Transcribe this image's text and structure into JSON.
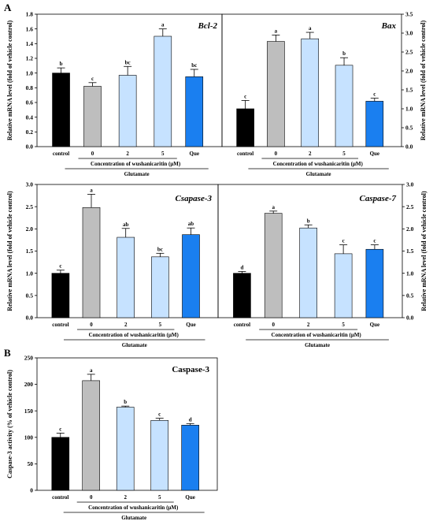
{
  "panel_letters": [
    "A",
    "B"
  ],
  "group_labels": {
    "concentration": "Concentration of wushanicaritin (μM)",
    "treatment": "Glutamate"
  },
  "bar_colors": [
    "#000000",
    "#bebebe",
    "#c6e2ff",
    "#c6e2ff",
    "#1a7ff0"
  ],
  "chart_data": [
    {
      "type": "bar",
      "title": "Bcl-2",
      "ylabel": "Relative mRNA level (fold of vehicle control)",
      "categories": [
        "control",
        "0",
        "2",
        "5",
        "Que"
      ],
      "values": [
        1.0,
        0.82,
        0.97,
        1.5,
        0.95
      ],
      "errors": [
        0.07,
        0.05,
        0.12,
        0.1,
        0.1
      ],
      "letters": [
        "b",
        "c",
        "bc",
        "a",
        "bc"
      ],
      "ylim": [
        0,
        1.8
      ],
      "yticks": [
        "0.0",
        "0.2",
        "0.4",
        "0.6",
        "0.8",
        "1.0",
        "1.2",
        "1.4",
        "1.6",
        "1.8"
      ],
      "yaxis_side": "left",
      "grid": false
    },
    {
      "type": "bar",
      "title": "Bax",
      "ylabel": "Relative mRNA level (fold of vehicle control)",
      "categories": [
        "control",
        "0",
        "2",
        "5",
        "Que"
      ],
      "values": [
        1.0,
        2.78,
        2.85,
        2.15,
        1.2
      ],
      "errors": [
        0.22,
        0.17,
        0.17,
        0.2,
        0.08
      ],
      "letters": [
        "c",
        "a",
        "a",
        "b",
        "c"
      ],
      "ylim": [
        0,
        3.5
      ],
      "yticks": [
        "0.0",
        "0.5",
        "1.0",
        "1.5",
        "2.0",
        "2.5",
        "3.0",
        "3.5"
      ],
      "yaxis_side": "right",
      "grid": false
    },
    {
      "type": "bar",
      "title": "Csapase-3",
      "ylabel": "Relative mRNA level (fold of vehicle control)",
      "categories": [
        "control",
        "0",
        "2",
        "5",
        "Que"
      ],
      "values": [
        1.0,
        2.48,
        1.81,
        1.37,
        1.87
      ],
      "errors": [
        0.07,
        0.3,
        0.2,
        0.08,
        0.15
      ],
      "letters": [
        "c",
        "a",
        "ab",
        "bc",
        "ab"
      ],
      "ylim": [
        0,
        3.0
      ],
      "yticks": [
        "0.0",
        "0.5",
        "1.0",
        "1.5",
        "2.0",
        "2.5",
        "3.0"
      ],
      "yaxis_side": "left",
      "grid": false
    },
    {
      "type": "bar",
      "title": "Caspase-7",
      "ylabel": "Relative mRNA level (fold of vehicle control)",
      "categories": [
        "control",
        "0",
        "2",
        "5",
        "Que"
      ],
      "values": [
        1.0,
        2.35,
        2.02,
        1.44,
        1.54
      ],
      "errors": [
        0.04,
        0.05,
        0.07,
        0.2,
        0.1
      ],
      "letters": [
        "d",
        "a",
        "b",
        "c",
        "c"
      ],
      "ylim": [
        0,
        3.0
      ],
      "yticks": [
        "0.0",
        "0.5",
        "1.0",
        "1.5",
        "2.0",
        "2.5",
        "3.0"
      ],
      "yaxis_side": "right",
      "grid": false
    },
    {
      "type": "bar",
      "title": "Caspase-3",
      "ylabel": "Caspase-3 activity (% of vehicle control)",
      "categories": [
        "control",
        "0",
        "2",
        "5",
        "Que"
      ],
      "values": [
        100,
        207,
        157,
        132,
        123
      ],
      "errors": [
        8,
        12,
        2,
        4,
        3
      ],
      "letters": [
        "c",
        "a",
        "b",
        "c",
        "d"
      ],
      "ylim": [
        0,
        250
      ],
      "yticks": [
        "0",
        "50",
        "100",
        "150",
        "200",
        "250"
      ],
      "yaxis_side": "left",
      "grid": false
    }
  ]
}
